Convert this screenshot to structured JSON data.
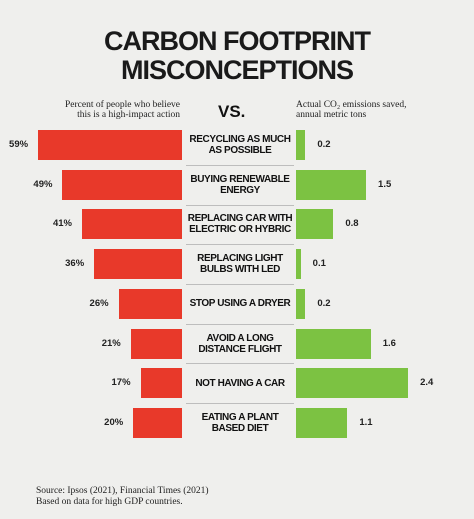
{
  "chart_data": {
    "type": "butterfly",
    "title": [
      "CARBON FOOTPRINT",
      "MISCONCEPTIONS"
    ],
    "center_label": "VS.",
    "categories": [
      "RECYCLING AS MUCH AS POSSIBLE",
      "BUYING RENEWABLE ENERGY",
      "REPLACING CAR WITH ELECTRIC OR HYBRIC",
      "REPLACING LIGHT BULBS WITH LED",
      "STOP USING A DRYER",
      "AVOID A LONG DISTANCE FLIGHT",
      "NOT HAVING A CAR",
      "EATING A PLANT BASED DIET"
    ],
    "series": [
      {
        "name": "Percent of people who believe this is a high-impact action",
        "color": "#e8392a",
        "values": [
          59,
          49,
          41,
          36,
          26,
          21,
          17,
          20
        ],
        "value_labels": [
          "59%",
          "49%",
          "41%",
          "36%",
          "26%",
          "21%",
          "17%",
          "20%"
        ]
      },
      {
        "name": "Actual CO₂ emissions saved, annual metric tons",
        "color": "#7cc242",
        "values": [
          0.2,
          1.5,
          0.8,
          0.1,
          0.2,
          1.6,
          2.4,
          1.1
        ]
      }
    ],
    "source": [
      "Source: Ipsos (2021), Financial Times (2021)",
      "Based on data for high GDP countries."
    ]
  }
}
